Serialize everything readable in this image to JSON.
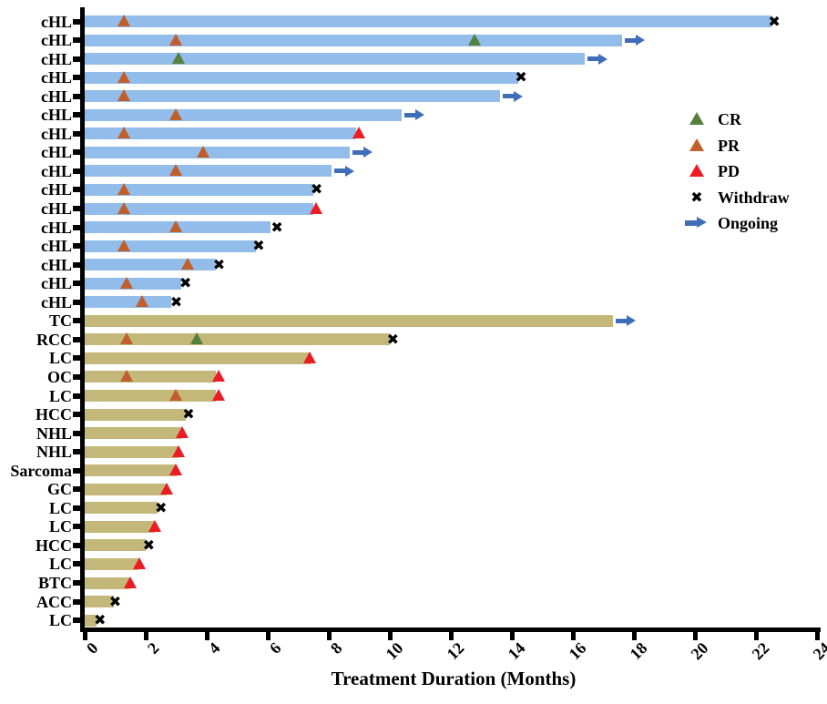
{
  "chart_data": {
    "type": "bar",
    "orientation": "horizontal",
    "title": "",
    "xlabel": "Treatment Duration (Months)",
    "ylabel": "",
    "xlim": [
      0,
      24
    ],
    "xticks": [
      "0",
      "2",
      "4",
      "6",
      "8",
      "10",
      "12",
      "14",
      "16",
      "18",
      "20",
      "22",
      "24"
    ],
    "grid": false,
    "legend_position": "upper-right",
    "colors": {
      "bar_cHL": "#92bce9",
      "bar_other": "#c3b77a",
      "CR": "#56813c",
      "PR": "#c05f2c",
      "PD": "#ed1c24",
      "Withdraw": "#000000",
      "Ongoing": "#3f6db8",
      "axis": "#000000"
    },
    "legend": [
      {
        "label": "CR",
        "marker": "triangle",
        "color_key": "CR"
      },
      {
        "label": "PR",
        "marker": "triangle",
        "color_key": "PR"
      },
      {
        "label": "PD",
        "marker": "triangle",
        "color_key": "PD"
      },
      {
        "label": "Withdraw",
        "marker": "cross",
        "color_key": "Withdraw"
      },
      {
        "label": "Ongoing",
        "marker": "arrow",
        "color_key": "Ongoing"
      }
    ],
    "rows": [
      {
        "label": "cHL",
        "group": "cHL",
        "duration": 22.5,
        "ongoing": false,
        "events": [
          {
            "type": "PR",
            "x": 1.3
          },
          {
            "type": "Withdraw",
            "x": 22.6
          }
        ]
      },
      {
        "label": "cHL",
        "group": "cHL",
        "duration": 17.6,
        "ongoing": true,
        "events": [
          {
            "type": "PR",
            "x": 3.0
          },
          {
            "type": "CR",
            "x": 12.8
          }
        ]
      },
      {
        "label": "cHL",
        "group": "cHL",
        "duration": 16.4,
        "ongoing": true,
        "events": [
          {
            "type": "CR",
            "x": 3.1
          }
        ]
      },
      {
        "label": "cHL",
        "group": "cHL",
        "duration": 14.2,
        "ongoing": false,
        "events": [
          {
            "type": "PR",
            "x": 1.3
          },
          {
            "type": "Withdraw",
            "x": 14.3
          }
        ]
      },
      {
        "label": "cHL",
        "group": "cHL",
        "duration": 13.6,
        "ongoing": true,
        "events": [
          {
            "type": "PR",
            "x": 1.3
          }
        ]
      },
      {
        "label": "cHL",
        "group": "cHL",
        "duration": 10.4,
        "ongoing": true,
        "events": [
          {
            "type": "PR",
            "x": 3.0
          }
        ]
      },
      {
        "label": "cHL",
        "group": "cHL",
        "duration": 8.9,
        "ongoing": false,
        "events": [
          {
            "type": "PR",
            "x": 1.3
          },
          {
            "type": "PD",
            "x": 9.0
          }
        ]
      },
      {
        "label": "cHL",
        "group": "cHL",
        "duration": 8.7,
        "ongoing": true,
        "events": [
          {
            "type": "PR",
            "x": 3.9
          }
        ]
      },
      {
        "label": "cHL",
        "group": "cHL",
        "duration": 8.1,
        "ongoing": true,
        "events": [
          {
            "type": "PR",
            "x": 3.0
          }
        ]
      },
      {
        "label": "cHL",
        "group": "cHL",
        "duration": 7.5,
        "ongoing": false,
        "events": [
          {
            "type": "PR",
            "x": 1.3
          },
          {
            "type": "Withdraw",
            "x": 7.6
          }
        ]
      },
      {
        "label": "cHL",
        "group": "cHL",
        "duration": 7.5,
        "ongoing": false,
        "events": [
          {
            "type": "PR",
            "x": 1.3
          },
          {
            "type": "PD",
            "x": 7.6
          }
        ]
      },
      {
        "label": "cHL",
        "group": "cHL",
        "duration": 6.1,
        "ongoing": false,
        "events": [
          {
            "type": "PR",
            "x": 3.0
          },
          {
            "type": "Withdraw",
            "x": 6.3
          }
        ]
      },
      {
        "label": "cHL",
        "group": "cHL",
        "duration": 5.6,
        "ongoing": false,
        "events": [
          {
            "type": "PR",
            "x": 1.3
          },
          {
            "type": "Withdraw",
            "x": 5.7
          }
        ]
      },
      {
        "label": "cHL",
        "group": "cHL",
        "duration": 4.3,
        "ongoing": false,
        "events": [
          {
            "type": "PR",
            "x": 3.4
          },
          {
            "type": "Withdraw",
            "x": 4.4
          }
        ]
      },
      {
        "label": "cHL",
        "group": "cHL",
        "duration": 3.15,
        "ongoing": false,
        "events": [
          {
            "type": "PR",
            "x": 1.4
          },
          {
            "type": "Withdraw",
            "x": 3.3
          }
        ]
      },
      {
        "label": "cHL",
        "group": "cHL",
        "duration": 2.85,
        "ongoing": false,
        "events": [
          {
            "type": "PR",
            "x": 1.9
          },
          {
            "type": "Withdraw",
            "x": 3.0
          }
        ]
      },
      {
        "label": "TC",
        "group": "other",
        "duration": 17.3,
        "ongoing": true,
        "events": []
      },
      {
        "label": "RCC",
        "group": "other",
        "duration": 10.0,
        "ongoing": false,
        "events": [
          {
            "type": "PR",
            "x": 1.4
          },
          {
            "type": "CR",
            "x": 3.7
          },
          {
            "type": "Withdraw",
            "x": 10.1
          }
        ]
      },
      {
        "label": "LC",
        "group": "other",
        "duration": 7.4,
        "ongoing": false,
        "events": [
          {
            "type": "PD",
            "x": 7.4
          }
        ]
      },
      {
        "label": "OC",
        "group": "other",
        "duration": 4.3,
        "ongoing": false,
        "events": [
          {
            "type": "PR",
            "x": 1.4
          },
          {
            "type": "PD",
            "x": 4.4
          }
        ]
      },
      {
        "label": "LC",
        "group": "other",
        "duration": 4.3,
        "ongoing": false,
        "events": [
          {
            "type": "PR",
            "x": 3.0
          },
          {
            "type": "PD",
            "x": 4.4
          }
        ]
      },
      {
        "label": "HCC",
        "group": "other",
        "duration": 3.3,
        "ongoing": false,
        "events": [
          {
            "type": "Withdraw",
            "x": 3.4
          }
        ]
      },
      {
        "label": "NHL",
        "group": "other",
        "duration": 3.2,
        "ongoing": false,
        "events": [
          {
            "type": "PD",
            "x": 3.2
          }
        ]
      },
      {
        "label": "NHL",
        "group": "other",
        "duration": 3.1,
        "ongoing": false,
        "events": [
          {
            "type": "PD",
            "x": 3.1
          }
        ]
      },
      {
        "label": "Sarcoma",
        "group": "other",
        "duration": 3.0,
        "ongoing": false,
        "events": [
          {
            "type": "PD",
            "x": 3.0
          }
        ]
      },
      {
        "label": "GC",
        "group": "other",
        "duration": 2.7,
        "ongoing": false,
        "events": [
          {
            "type": "PD",
            "x": 2.7
          }
        ]
      },
      {
        "label": "LC",
        "group": "other",
        "duration": 2.4,
        "ongoing": false,
        "events": [
          {
            "type": "Withdraw",
            "x": 2.5
          }
        ]
      },
      {
        "label": "LC",
        "group": "other",
        "duration": 2.3,
        "ongoing": false,
        "events": [
          {
            "type": "PD",
            "x": 2.3
          }
        ]
      },
      {
        "label": "HCC",
        "group": "other",
        "duration": 2.0,
        "ongoing": false,
        "events": [
          {
            "type": "Withdraw",
            "x": 2.1
          }
        ]
      },
      {
        "label": "LC",
        "group": "other",
        "duration": 1.8,
        "ongoing": false,
        "events": [
          {
            "type": "PD",
            "x": 1.8
          }
        ]
      },
      {
        "label": "BTC",
        "group": "other",
        "duration": 1.5,
        "ongoing": false,
        "events": [
          {
            "type": "PD",
            "x": 1.5
          }
        ]
      },
      {
        "label": "ACC",
        "group": "other",
        "duration": 0.95,
        "ongoing": false,
        "events": [
          {
            "type": "Withdraw",
            "x": 1.0
          }
        ]
      },
      {
        "label": "LC",
        "group": "other",
        "duration": 0.4,
        "ongoing": false,
        "events": [
          {
            "type": "Withdraw",
            "x": 0.5
          }
        ]
      }
    ]
  }
}
